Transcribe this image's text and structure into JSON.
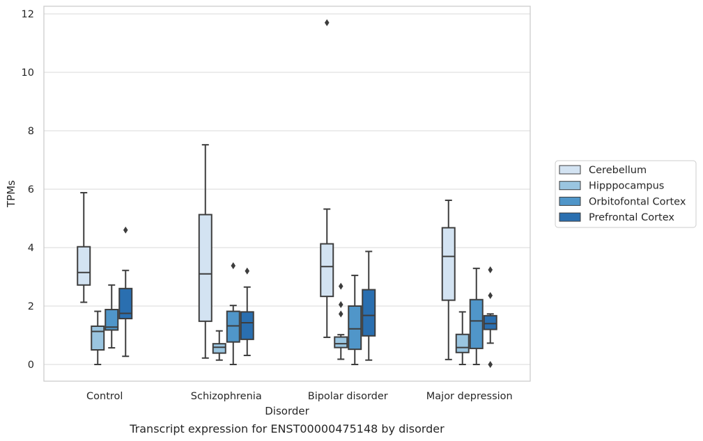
{
  "chart_data": {
    "type": "box",
    "caption": "Transcript expression for ENST00000475148 by disorder",
    "xlabel": "Disorder",
    "ylabel": "TPMs",
    "ylim": [
      -0.55,
      12.25
    ],
    "yticks": [
      0,
      2,
      4,
      6,
      8,
      10,
      12
    ],
    "grid": "horizontal",
    "legend_position": "right",
    "categories": [
      "Control",
      "Schizophrenia",
      "Bipolar disorder",
      "Major depression"
    ],
    "series": [
      {
        "name": "Cerebellum",
        "color": "#d3e3f2",
        "boxes": [
          {
            "whislo": 2.13,
            "q1": 2.72,
            "med": 3.15,
            "q3": 4.03,
            "whishi": 5.88,
            "fliers": []
          },
          {
            "whislo": 0.22,
            "q1": 1.48,
            "med": 3.1,
            "q3": 5.13,
            "whishi": 7.52,
            "fliers": []
          },
          {
            "whislo": 0.93,
            "q1": 2.33,
            "med": 3.35,
            "q3": 4.13,
            "whishi": 5.32,
            "fliers": [
              11.7
            ]
          },
          {
            "whislo": 0.17,
            "q1": 2.2,
            "med": 3.7,
            "q3": 4.68,
            "whishi": 5.62,
            "fliers": []
          }
        ]
      },
      {
        "name": "Hipppocampus",
        "color": "#9ac5e0",
        "boxes": [
          {
            "whislo": 0.0,
            "q1": 0.5,
            "med": 1.13,
            "q3": 1.31,
            "whishi": 1.82,
            "fliers": []
          },
          {
            "whislo": 0.15,
            "q1": 0.39,
            "med": 0.59,
            "q3": 0.71,
            "whishi": 1.15,
            "fliers": []
          },
          {
            "whislo": 0.18,
            "q1": 0.58,
            "med": 0.71,
            "q3": 0.94,
            "whishi": 1.02,
            "fliers": [
              1.73,
              2.05,
              2.68
            ]
          },
          {
            "whislo": 0.0,
            "q1": 0.41,
            "med": 0.58,
            "q3": 1.03,
            "whishi": 1.8,
            "fliers": []
          }
        ]
      },
      {
        "name": "Orbitofontal Cortex",
        "color": "#5096c9",
        "boxes": [
          {
            "whislo": 0.57,
            "q1": 1.18,
            "med": 1.28,
            "q3": 1.88,
            "whishi": 2.72,
            "fliers": []
          },
          {
            "whislo": 0.0,
            "q1": 0.77,
            "med": 1.32,
            "q3": 1.82,
            "whishi": 2.02,
            "fliers": [
              3.38
            ]
          },
          {
            "whislo": 0.0,
            "q1": 0.52,
            "med": 1.22,
            "q3": 2.0,
            "whishi": 3.05,
            "fliers": []
          },
          {
            "whislo": 0.0,
            "q1": 0.55,
            "med": 1.49,
            "q3": 2.22,
            "whishi": 3.29,
            "fliers": []
          }
        ]
      },
      {
        "name": "Prefrontal Cortex",
        "color": "#2a6fb0",
        "boxes": [
          {
            "whislo": 0.28,
            "q1": 1.57,
            "med": 1.75,
            "q3": 2.6,
            "whishi": 3.22,
            "fliers": [
              4.6
            ]
          },
          {
            "whislo": 0.31,
            "q1": 0.86,
            "med": 1.43,
            "q3": 1.8,
            "whishi": 2.65,
            "fliers": [
              3.2
            ]
          },
          {
            "whislo": 0.15,
            "q1": 0.98,
            "med": 1.68,
            "q3": 2.56,
            "whishi": 3.87,
            "fliers": []
          },
          {
            "whislo": 0.73,
            "q1": 1.2,
            "med": 1.4,
            "q3": 1.67,
            "whishi": 1.73,
            "fliers": [
              0.0,
              2.36,
              3.24
            ]
          }
        ]
      }
    ]
  }
}
